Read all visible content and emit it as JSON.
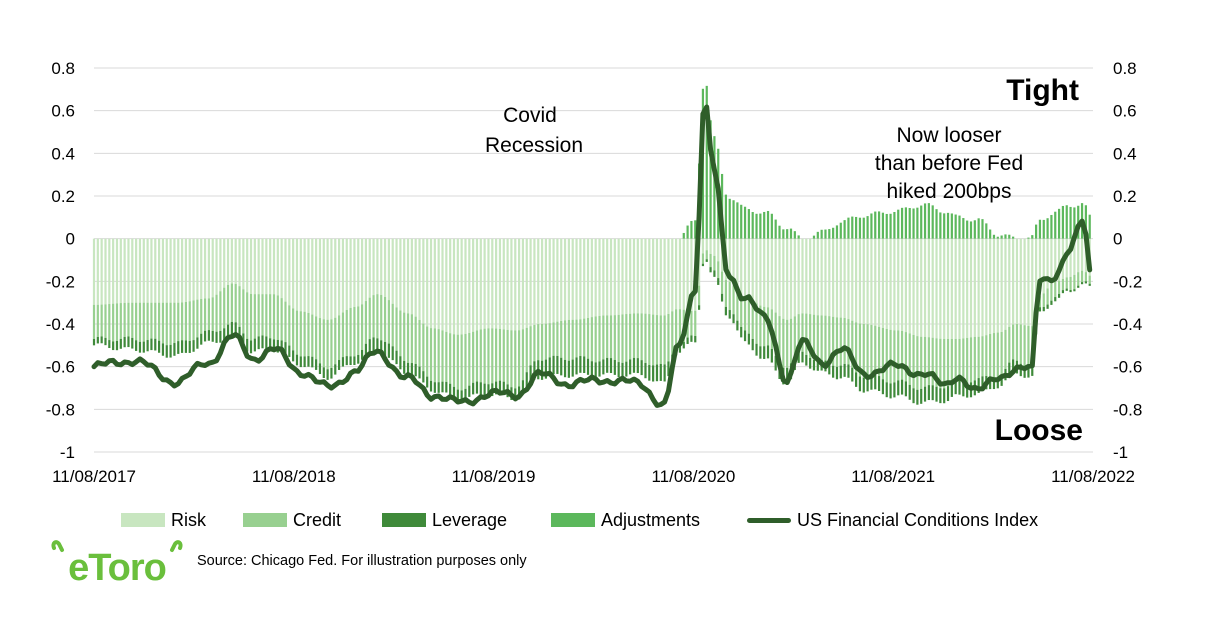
{
  "chart_data": {
    "type": "bar+line",
    "title": "",
    "annotations": {
      "covid": [
        "Covid",
        "Recession"
      ],
      "looser": [
        "Now looser",
        "than before Fed",
        "hiked 200bps"
      ],
      "tight": "Tight",
      "loose": "Loose"
    },
    "x_ticks": [
      "11/08/2017",
      "11/08/2018",
      "11/08/2019",
      "11/08/2020",
      "11/08/2021",
      "11/08/2022"
    ],
    "y_ticks": [
      "0.8",
      "0.6",
      "0.4",
      "0.2",
      "0",
      "-0.2",
      "-0.4",
      "-0.6",
      "-0.8",
      "-1"
    ],
    "ylim": [
      -1,
      0.8
    ],
    "x_range": [
      "2017-11-08",
      "2022-11-08"
    ],
    "grid": true,
    "legend_position": "bottom",
    "colors": {
      "risk": "#c8e6c0",
      "credit": "#98d090",
      "leverage": "#3f8a3a",
      "adjustments": "#5cb85c",
      "index": "#2f5e2a"
    },
    "key_points": [
      [
        "2017-11-08",
        -0.31,
        -0.16,
        -0.03,
        0.0,
        -0.6
      ],
      [
        "2018-01-15",
        -0.3,
        -0.17,
        -0.05,
        0.0,
        -0.57
      ],
      [
        "2018-04-10",
        -0.3,
        -0.19,
        -0.06,
        0.0,
        -0.67
      ],
      [
        "2018-06-05",
        -0.28,
        -0.16,
        -0.05,
        0.0,
        -0.58
      ],
      [
        "2018-07-20",
        -0.21,
        -0.19,
        -0.06,
        0.0,
        -0.46
      ],
      [
        "2018-08-25",
        -0.26,
        -0.21,
        -0.06,
        0.0,
        -0.56
      ],
      [
        "2018-10-01",
        -0.26,
        -0.2,
        -0.06,
        0.0,
        -0.52
      ],
      [
        "2018-11-20",
        -0.34,
        -0.2,
        -0.05,
        0.0,
        -0.62
      ],
      [
        "2019-01-10",
        -0.38,
        -0.22,
        -0.05,
        0.0,
        -0.7
      ],
      [
        "2019-03-01",
        -0.32,
        -0.22,
        -0.04,
        0.0,
        -0.62
      ],
      [
        "2019-04-10",
        -0.26,
        -0.2,
        -0.07,
        0.0,
        -0.53
      ],
      [
        "2019-06-05",
        -0.35,
        -0.22,
        -0.06,
        0.0,
        -0.66
      ],
      [
        "2019-07-20",
        -0.42,
        -0.24,
        -0.05,
        0.0,
        -0.73
      ],
      [
        "2019-09-05",
        -0.45,
        -0.25,
        -0.05,
        0.0,
        -0.77
      ],
      [
        "2019-11-01",
        -0.42,
        -0.25,
        -0.06,
        0.0,
        -0.73
      ],
      [
        "2019-12-20",
        -0.43,
        -0.26,
        -0.06,
        0.0,
        -0.73
      ],
      [
        "2020-02-01",
        -0.4,
        -0.16,
        -0.09,
        0.0,
        -0.64
      ],
      [
        "2020-04-01",
        -0.38,
        -0.18,
        -0.08,
        0.0,
        -0.68
      ],
      [
        "2020-06-01",
        -0.36,
        -0.21,
        -0.07,
        0.0,
        -0.66
      ],
      [
        "2020-08-01",
        -0.35,
        -0.22,
        -0.07,
        0.0,
        -0.68
      ],
      [
        "2020-09-15",
        -0.36,
        -0.24,
        -0.08,
        0.0,
        -0.78
      ],
      [
        "2020-10-10",
        -0.33,
        -0.17,
        -0.03,
        0.0,
        -0.52
      ],
      [
        "2020-11-10",
        -0.34,
        -0.12,
        -0.03,
        0.08,
        -0.24
      ],
      [
        "2020-11-28",
        -0.05,
        -0.03,
        -0.01,
        0.76,
        0.65
      ],
      [
        "2020-12-15",
        -0.08,
        -0.08,
        -0.03,
        0.47,
        0.32
      ],
      [
        "2021-01-10",
        -0.2,
        -0.12,
        -0.04,
        0.2,
        -0.17
      ],
      [
        "2021-02-10",
        -0.28,
        -0.16,
        -0.05,
        0.14,
        -0.27
      ],
      [
        "2021-03-20",
        -0.32,
        -0.19,
        -0.06,
        0.12,
        -0.38
      ],
      [
        "2021-04-28",
        -0.38,
        -0.22,
        -0.08,
        0.05,
        -0.66
      ],
      [
        "2021-05-25",
        -0.35,
        -0.18,
        -0.05,
        0.0,
        -0.49
      ],
      [
        "2021-07-01",
        -0.36,
        -0.22,
        -0.05,
        0.03,
        -0.58
      ],
      [
        "2021-08-05",
        -0.37,
        -0.22,
        -0.06,
        0.08,
        -0.52
      ],
      [
        "2021-09-15",
        -0.4,
        -0.24,
        -0.07,
        0.11,
        -0.63
      ],
      [
        "2021-11-15",
        -0.43,
        -0.24,
        -0.07,
        0.13,
        -0.6
      ],
      [
        "2022-01-01",
        -0.46,
        -0.24,
        -0.07,
        0.16,
        -0.63
      ],
      [
        "2022-02-10",
        -0.47,
        -0.22,
        -0.07,
        0.13,
        -0.69
      ],
      [
        "2022-03-05",
        -0.47,
        -0.2,
        -0.07,
        0.1,
        -0.64
      ],
      [
        "2022-04-10",
        -0.46,
        -0.2,
        -0.07,
        0.09,
        -0.72
      ],
      [
        "2022-05-20",
        -0.44,
        -0.2,
        -0.05,
        0.02,
        -0.64
      ],
      [
        "2022-06-20",
        -0.4,
        -0.17,
        -0.06,
        0.0,
        -0.62
      ],
      [
        "2022-07-20",
        -0.41,
        -0.19,
        -0.05,
        0.01,
        -0.61
      ],
      [
        "2022-08-01",
        -0.27,
        -0.06,
        -0.02,
        0.08,
        -0.18
      ],
      [
        "2022-09-01",
        -0.2,
        -0.07,
        -0.02,
        0.13,
        -0.18
      ],
      [
        "2022-09-25",
        -0.18,
        -0.06,
        -0.01,
        0.15,
        -0.07
      ],
      [
        "2022-10-20",
        -0.15,
        -0.05,
        -0.01,
        0.17,
        0.1
      ],
      [
        "2022-11-08",
        -0.18,
        -0.05,
        -0.01,
        0.08,
        -0.21
      ]
    ]
  },
  "legend": {
    "risk": "Risk",
    "credit": "Credit",
    "leverage": "Leverage",
    "adjustments": "Adjustments",
    "index": "US Financial Conditions Index"
  },
  "footer": {
    "logo_text": "eToro",
    "source": "Source: Chicago Fed. For illustration purposes only"
  }
}
